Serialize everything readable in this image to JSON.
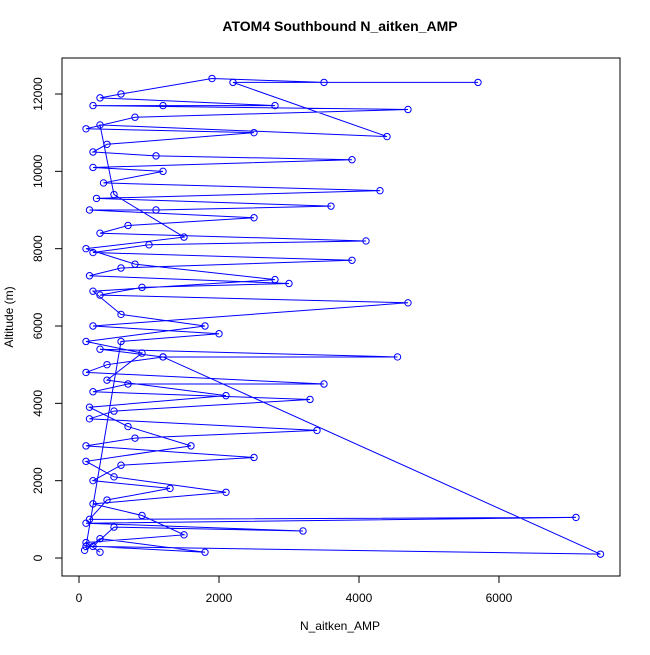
{
  "chart_data": {
    "type": "line",
    "title": "ATOM4 Southbound N_aitken_AMP",
    "x_label": "N_aitken_AMP",
    "y_label": "Altitude (m)",
    "xlim": [
      -243,
      7729
    ],
    "ylim": [
      -465,
      12931
    ],
    "xticks": [
      0,
      2000,
      4000,
      6000
    ],
    "yticks": [
      0,
      2000,
      4000,
      6000,
      8000,
      10000,
      12000
    ],
    "marker": "open-circle",
    "x": [
      80,
      300,
      1800,
      200,
      500,
      3200,
      100,
      7100,
      150,
      400,
      1300,
      200,
      600,
      2500,
      100,
      800,
      3400,
      150,
      500,
      3300,
      200,
      700,
      3500,
      100,
      400,
      1200,
      4550,
      300,
      1200,
      7450,
      100,
      600,
      2000,
      200,
      4700,
      300,
      900,
      3000,
      150,
      600,
      3900,
      200,
      1000,
      4100,
      300,
      700,
      2500,
      150,
      1100,
      3600,
      250,
      4300,
      350,
      1200,
      200,
      3900,
      1100,
      200,
      400,
      2500,
      100,
      800,
      4700,
      200,
      1200,
      2800,
      300,
      600,
      1900,
      3500,
      5700,
      2200,
      4400,
      300,
      500,
      1500,
      100,
      800,
      2800,
      200,
      600,
      1800,
      100,
      900,
      400,
      2100,
      150,
      700,
      1600,
      100,
      500,
      2100,
      200,
      900,
      1500,
      100,
      300
    ],
    "series": [
      {
        "color": "#0000ff",
        "values": [
          200,
          500,
          150,
          300,
          800,
          700,
          900,
          1050,
          1000,
          1500,
          1800,
          2000,
          2400,
          2600,
          2900,
          3100,
          3300,
          3600,
          3800,
          4100,
          4300,
          4500,
          4500,
          4800,
          5000,
          5200,
          5200,
          5400,
          5200,
          100,
          300,
          5600,
          5800,
          6000,
          6600,
          6800,
          7000,
          7100,
          7300,
          7500,
          7700,
          7900,
          8100,
          8200,
          8400,
          8600,
          8800,
          9000,
          9000,
          9100,
          9300,
          9500,
          9700,
          10000,
          10100,
          10300,
          10400,
          10500,
          10700,
          11000,
          11100,
          11400,
          11600,
          11700,
          11700,
          11700,
          11900,
          12000,
          12400,
          12300,
          12300,
          12300,
          10900,
          11200,
          9400,
          8300,
          8000,
          7600,
          7200,
          6900,
          6300,
          6000,
          5600,
          5300,
          4600,
          4200,
          3900,
          3400,
          2900,
          2500,
          2100,
          1700,
          1400,
          1100,
          600,
          400,
          150
        ]
      }
    ]
  }
}
